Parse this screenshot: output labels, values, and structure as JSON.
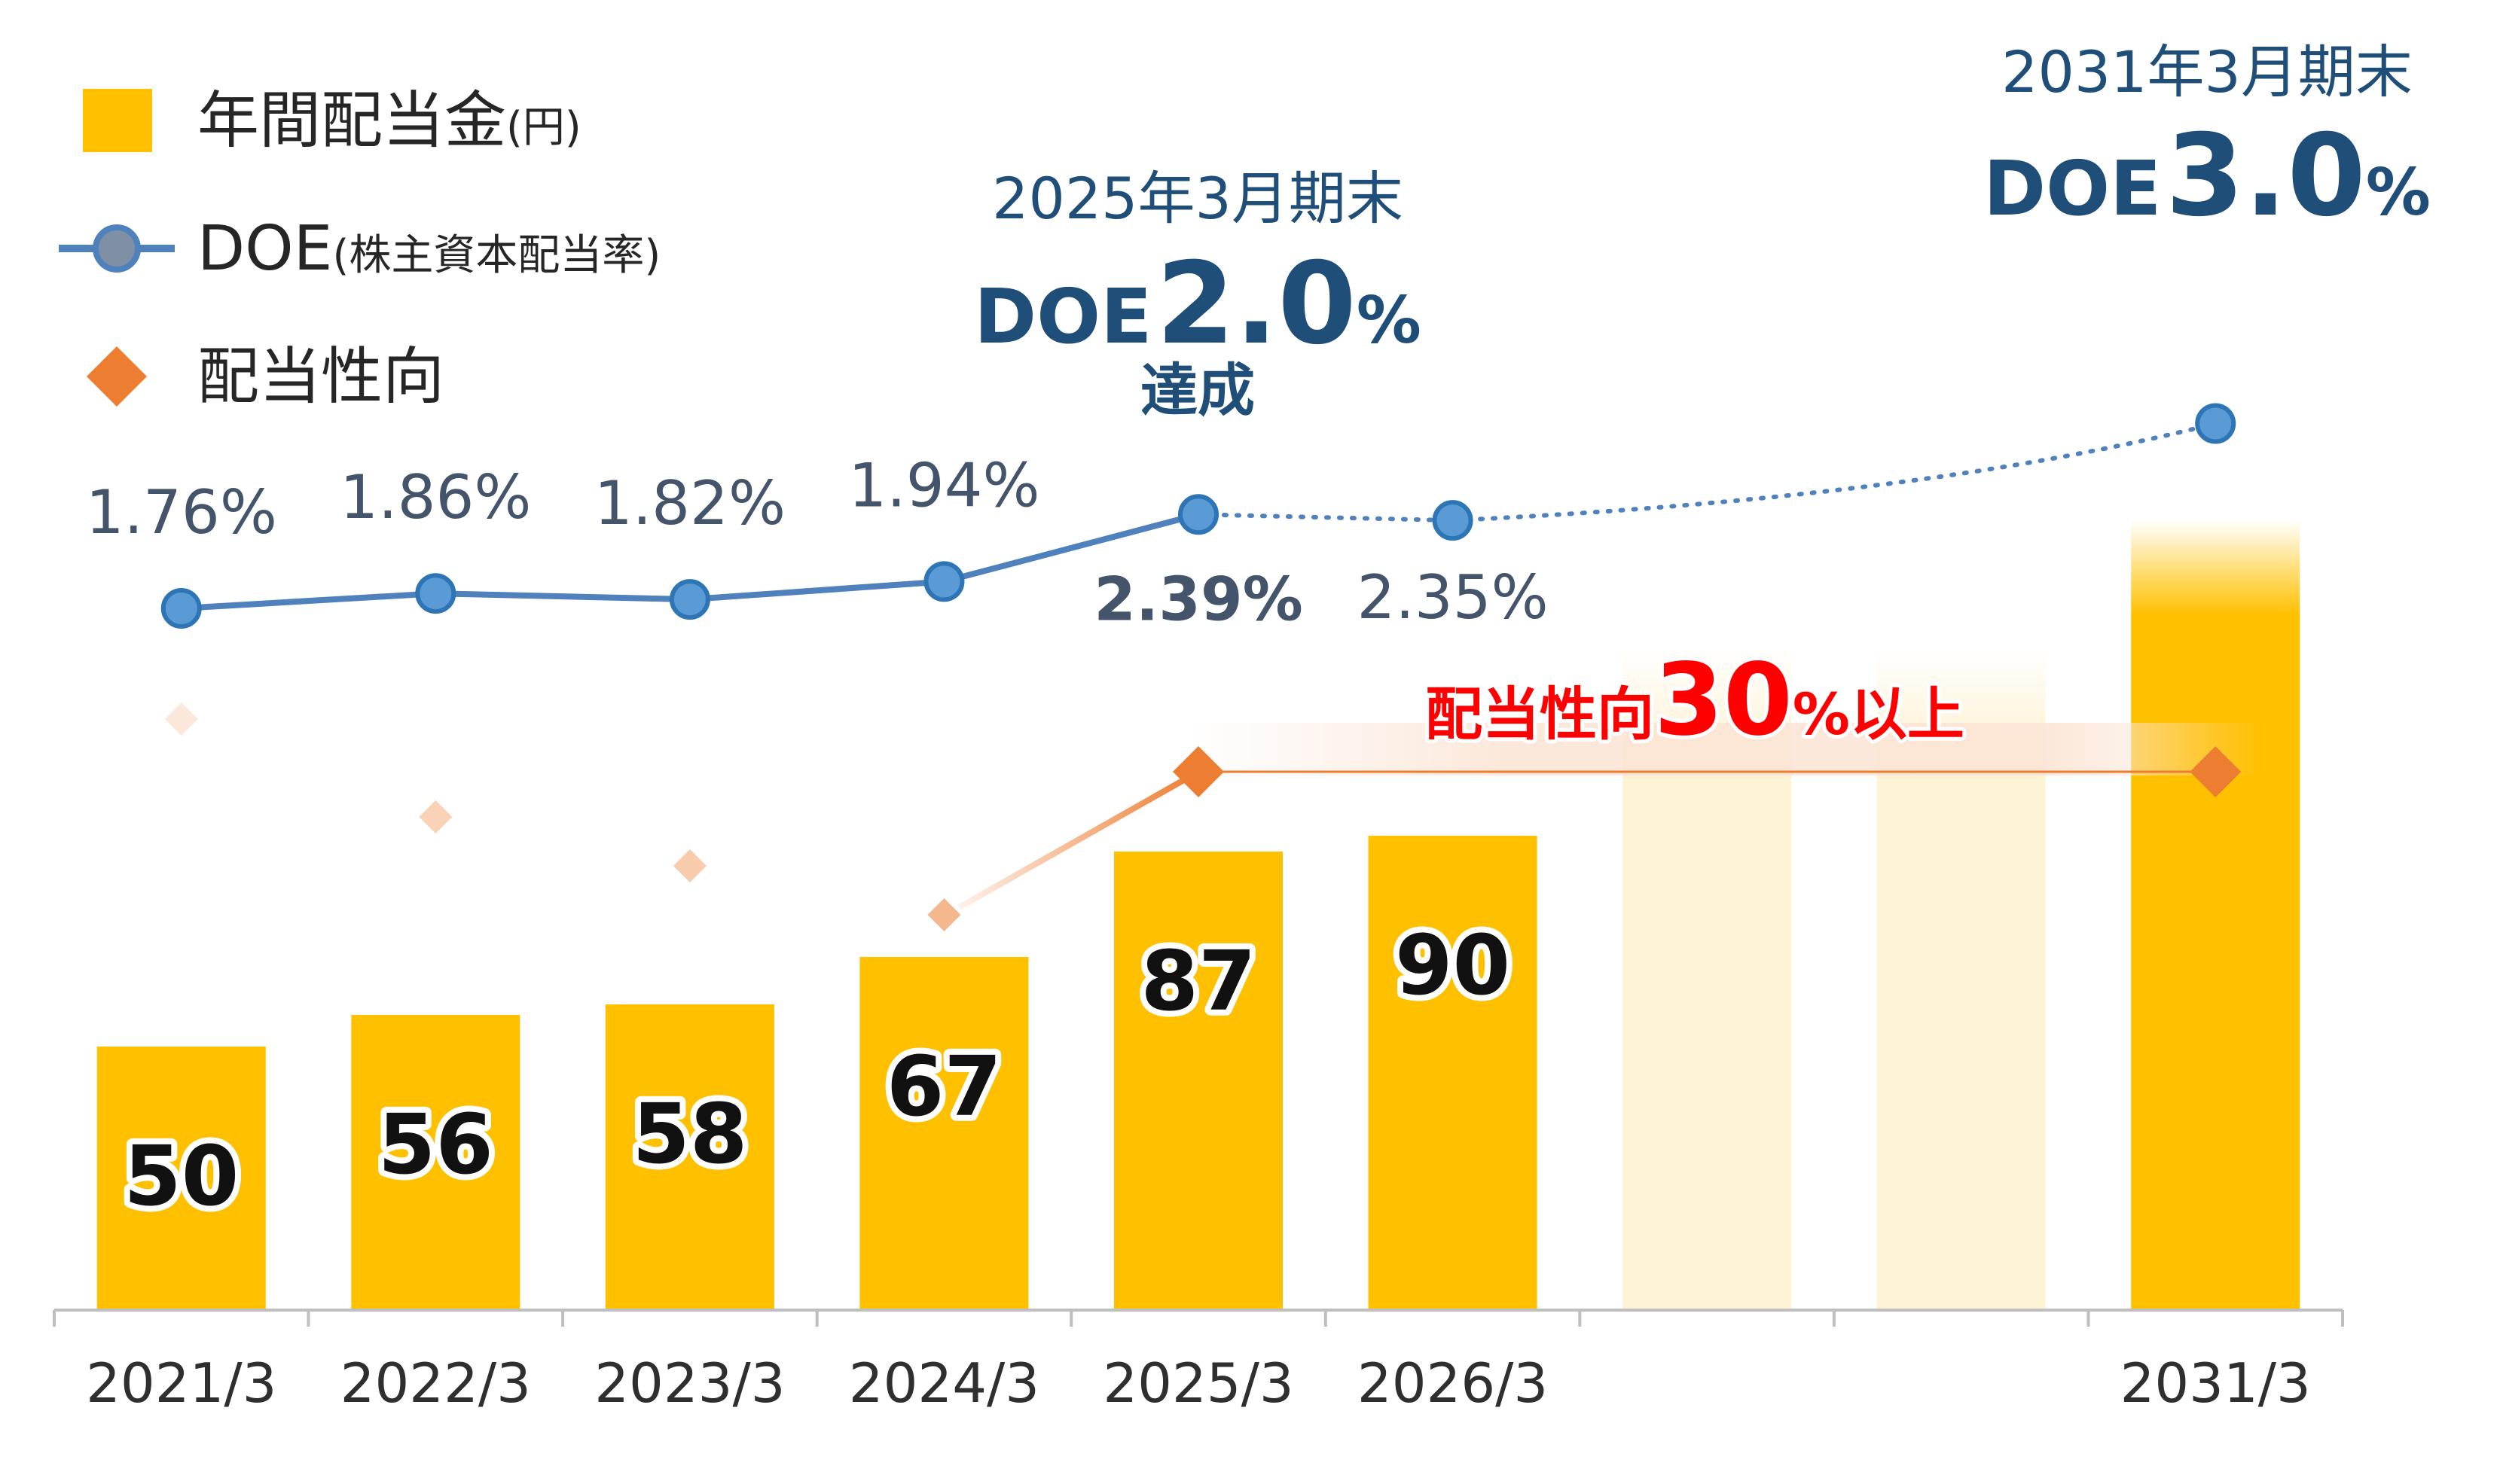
{
  "chart_data": {
    "type": "bar",
    "categories": [
      "2021/3",
      "2022/3",
      "2023/3",
      "2024/3",
      "2025/3",
      "2026/3",
      "",
      "",
      "2031/3"
    ],
    "series": [
      {
        "name": "年間配当金(円)",
        "values": [
          50,
          56,
          58,
          67,
          87,
          90,
          null,
          null,
          null
        ]
      },
      {
        "name": "DOE(株主資本配当率)",
        "values": [
          1.76,
          1.86,
          1.82,
          1.94,
          2.39,
          2.35,
          null,
          null,
          3.0
        ],
        "labels": [
          "1.76%",
          "1.86%",
          "1.82%",
          "1.94%",
          "2.39%",
          "2.35%",
          "",
          "",
          ""
        ]
      },
      {
        "name": "配当性向",
        "values": [
          null,
          null,
          null,
          null,
          30,
          null,
          null,
          null,
          30
        ]
      }
    ],
    "legend": {
      "position": "top-left",
      "items": [
        {
          "text": "年間配当金",
          "sub": "(円)",
          "marker": "square"
        },
        {
          "text": "DOE",
          "sub": "(株主資本配当率)",
          "marker": "line-circle"
        },
        {
          "text": "配当性向",
          "sub": "",
          "marker": "diamond"
        }
      ]
    },
    "annotations": {
      "target_2025": {
        "period": "2025年3月期末",
        "doe_prefix": "DOE",
        "doe_value": "2.0",
        "unit": "%",
        "status": "達成"
      },
      "target_2031": {
        "period": "2031年3月期末",
        "doe_prefix": "DOE",
        "doe_value": "3.0",
        "unit": "%"
      },
      "payout": {
        "prefix": "配当性向",
        "value": "30",
        "suffix": "%以上"
      }
    },
    "colors": {
      "bar": "#ffc000",
      "doe": "#4f81bd",
      "payout": "#ed7d31",
      "heading": "#1f4e79",
      "emphasis": "#ff0000"
    }
  }
}
